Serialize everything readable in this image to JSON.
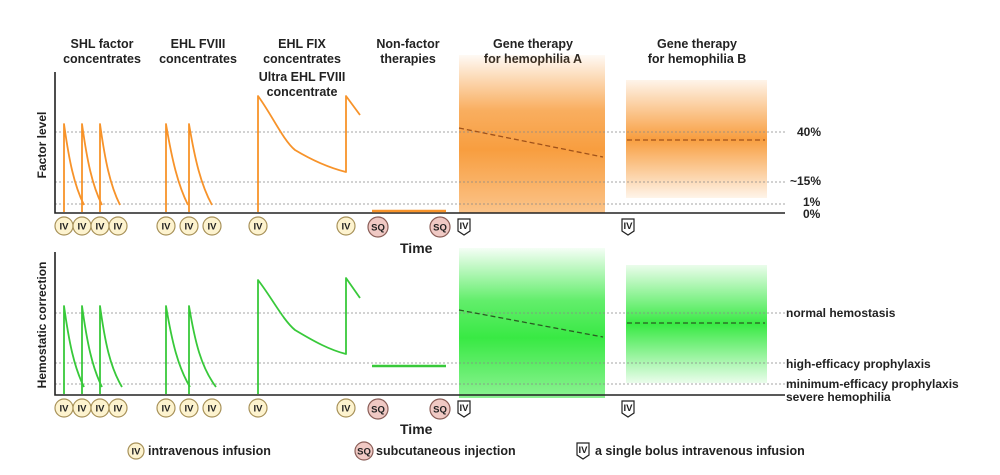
{
  "headers": {
    "shl": [
      "SHL factor",
      "concentrates"
    ],
    "ehl_fviii": [
      "EHL FVIII",
      "concentrates"
    ],
    "ehl_fix": [
      "EHL FIX",
      "concentrates"
    ],
    "ultra": [
      "Ultra EHL FVIII",
      "concentrate"
    ],
    "nonfactor": [
      "Non-factor",
      "therapies"
    ],
    "gene_a": [
      "Gene therapy",
      "for hemophilia A"
    ],
    "gene_b": [
      "Gene therapy",
      "for hemophilia B"
    ]
  },
  "top_panel": {
    "y_label": "Factor level",
    "x_label": "Time",
    "levels": [
      "40%",
      "~15%",
      "1%",
      "0%"
    ]
  },
  "bottom_panel": {
    "y_label": "Hemostatic correction",
    "x_label": "Time",
    "levels": [
      "normal hemostasis",
      "high-efficacy prophylaxis",
      "minimum-efficacy prophylaxis",
      "severe hemophilia"
    ]
  },
  "badges": {
    "iv": "IV",
    "sq": "SQ"
  },
  "legend": {
    "iv": "intravenous infusion",
    "sq": "subcutaneous injection",
    "bolus": "a single bolus intravenous infusion"
  },
  "colors": {
    "factor": "#f7932a",
    "hemostatic": "#38c93a",
    "iv_badge": "#fdf3cf",
    "sq_badge": "#f0c9c4"
  }
}
